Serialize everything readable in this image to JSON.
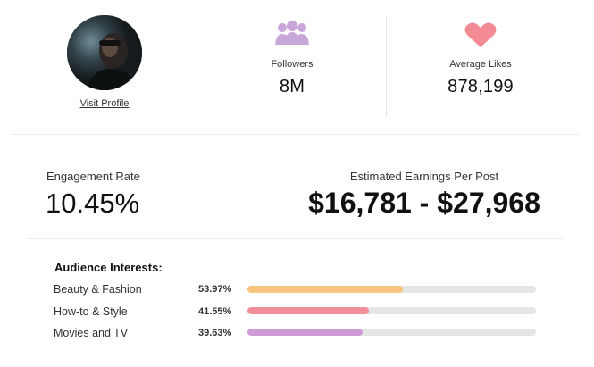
{
  "profile": {
    "visit_label": "Visit Profile"
  },
  "followers": {
    "label": "Followers",
    "value": "8M",
    "icon": "people-icon",
    "icon_color": "#c9a6d9"
  },
  "average_likes": {
    "label": "Average Likes",
    "value": "878,199",
    "icon": "heart-icon",
    "icon_color": "#f28b94"
  },
  "engagement": {
    "label": "Engagement Rate",
    "value": "10.45%"
  },
  "earnings": {
    "label": "Estimated Earnings Per Post",
    "value": "$16,781 - $27,968"
  },
  "audience_interests": {
    "title": "Audience Interests:",
    "items": [
      {
        "label": "Beauty & Fashion",
        "percent_label": "53.97%",
        "fill_fraction": 0.54,
        "color": "#f8c57e"
      },
      {
        "label": "How-to & Style",
        "percent_label": "41.55%",
        "fill_fraction": 0.42,
        "color": "#f08f98"
      },
      {
        "label": "Movies and TV",
        "percent_label": "39.63%",
        "fill_fraction": 0.4,
        "color": "#cf9bd6"
      }
    ]
  }
}
